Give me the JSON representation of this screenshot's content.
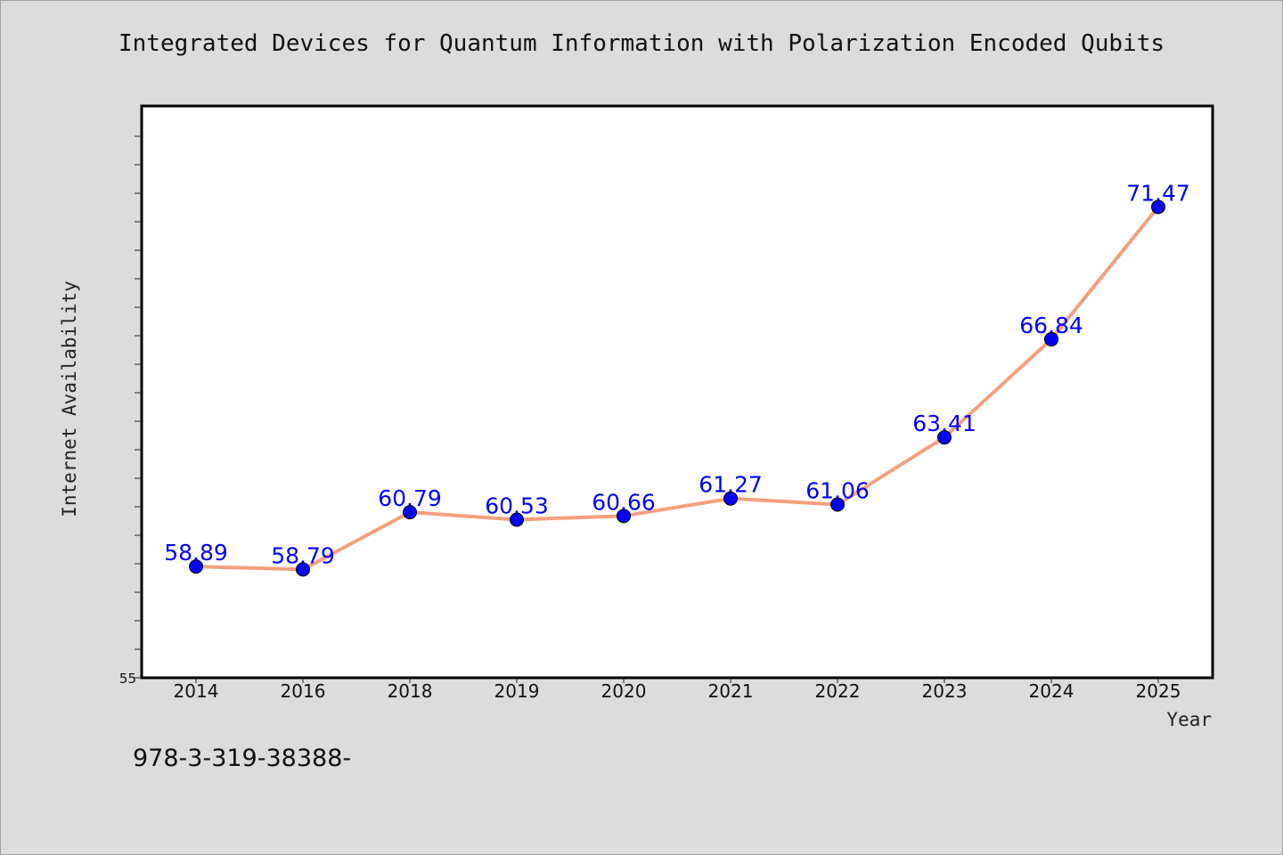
{
  "chart_data": {
    "type": "line",
    "title": "Integrated Devices for Quantum Information with Polarization Encoded Qubits",
    "xlabel": "Year",
    "ylabel": "Internet Availability",
    "categories": [
      "2014",
      "2016",
      "2018",
      "2019",
      "2020",
      "2021",
      "2022",
      "2023",
      "2024",
      "2025"
    ],
    "series": [
      {
        "values": [
          58.89,
          58.79,
          60.79,
          60.53,
          60.66,
          61.27,
          61.06,
          63.41,
          66.84,
          71.47
        ],
        "labels": [
          "58.89",
          "58.79",
          "60.79",
          "60.53",
          "60.66",
          "61.27",
          "61.06",
          "63.41",
          "66.84",
          "71.47"
        ]
      }
    ],
    "ylim": [
      55,
      75
    ],
    "yticks": [
      "55"
    ],
    "grid": false,
    "legend": "none",
    "colors": {
      "line": "#f4a07f",
      "marker": "#0000ff",
      "label": "#0000ff",
      "plot_bg": "#ffffff",
      "page_bg": "#dcdcdc"
    }
  },
  "footnote": "978-3-319-38388-"
}
